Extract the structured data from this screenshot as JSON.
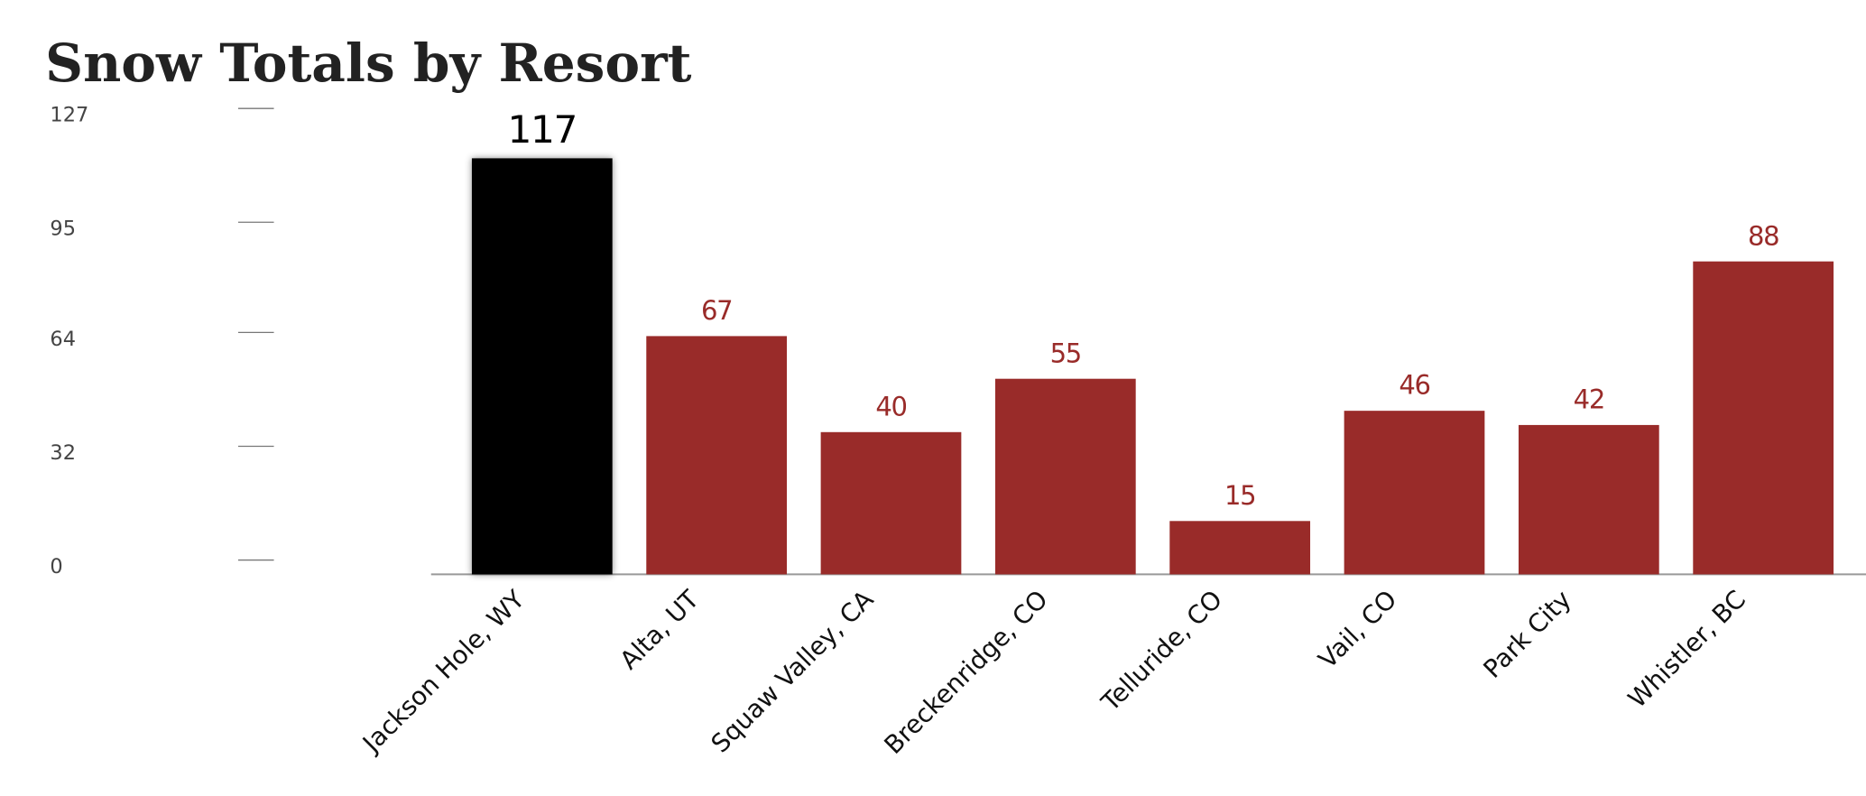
{
  "chart_data": {
    "type": "bar",
    "title": "Snow Totals by Resort",
    "categories": [
      "Jackson Hole, WY",
      "Alta, UT",
      "Squaw Valley, CA",
      "Breckenridge, CO",
      "Telluride, CO",
      "Vail, CO",
      "Park City",
      "Whistler, BC"
    ],
    "values": [
      117,
      67,
      40,
      55,
      15,
      46,
      42,
      88
    ],
    "colors": [
      "#000000",
      "#992b29",
      "#992b29",
      "#992b29",
      "#992b29",
      "#992b29",
      "#992b29",
      "#992b29"
    ],
    "ylim": [
      0,
      127
    ],
    "yticks": [
      0,
      32,
      64,
      95,
      127
    ],
    "grid": false
  }
}
